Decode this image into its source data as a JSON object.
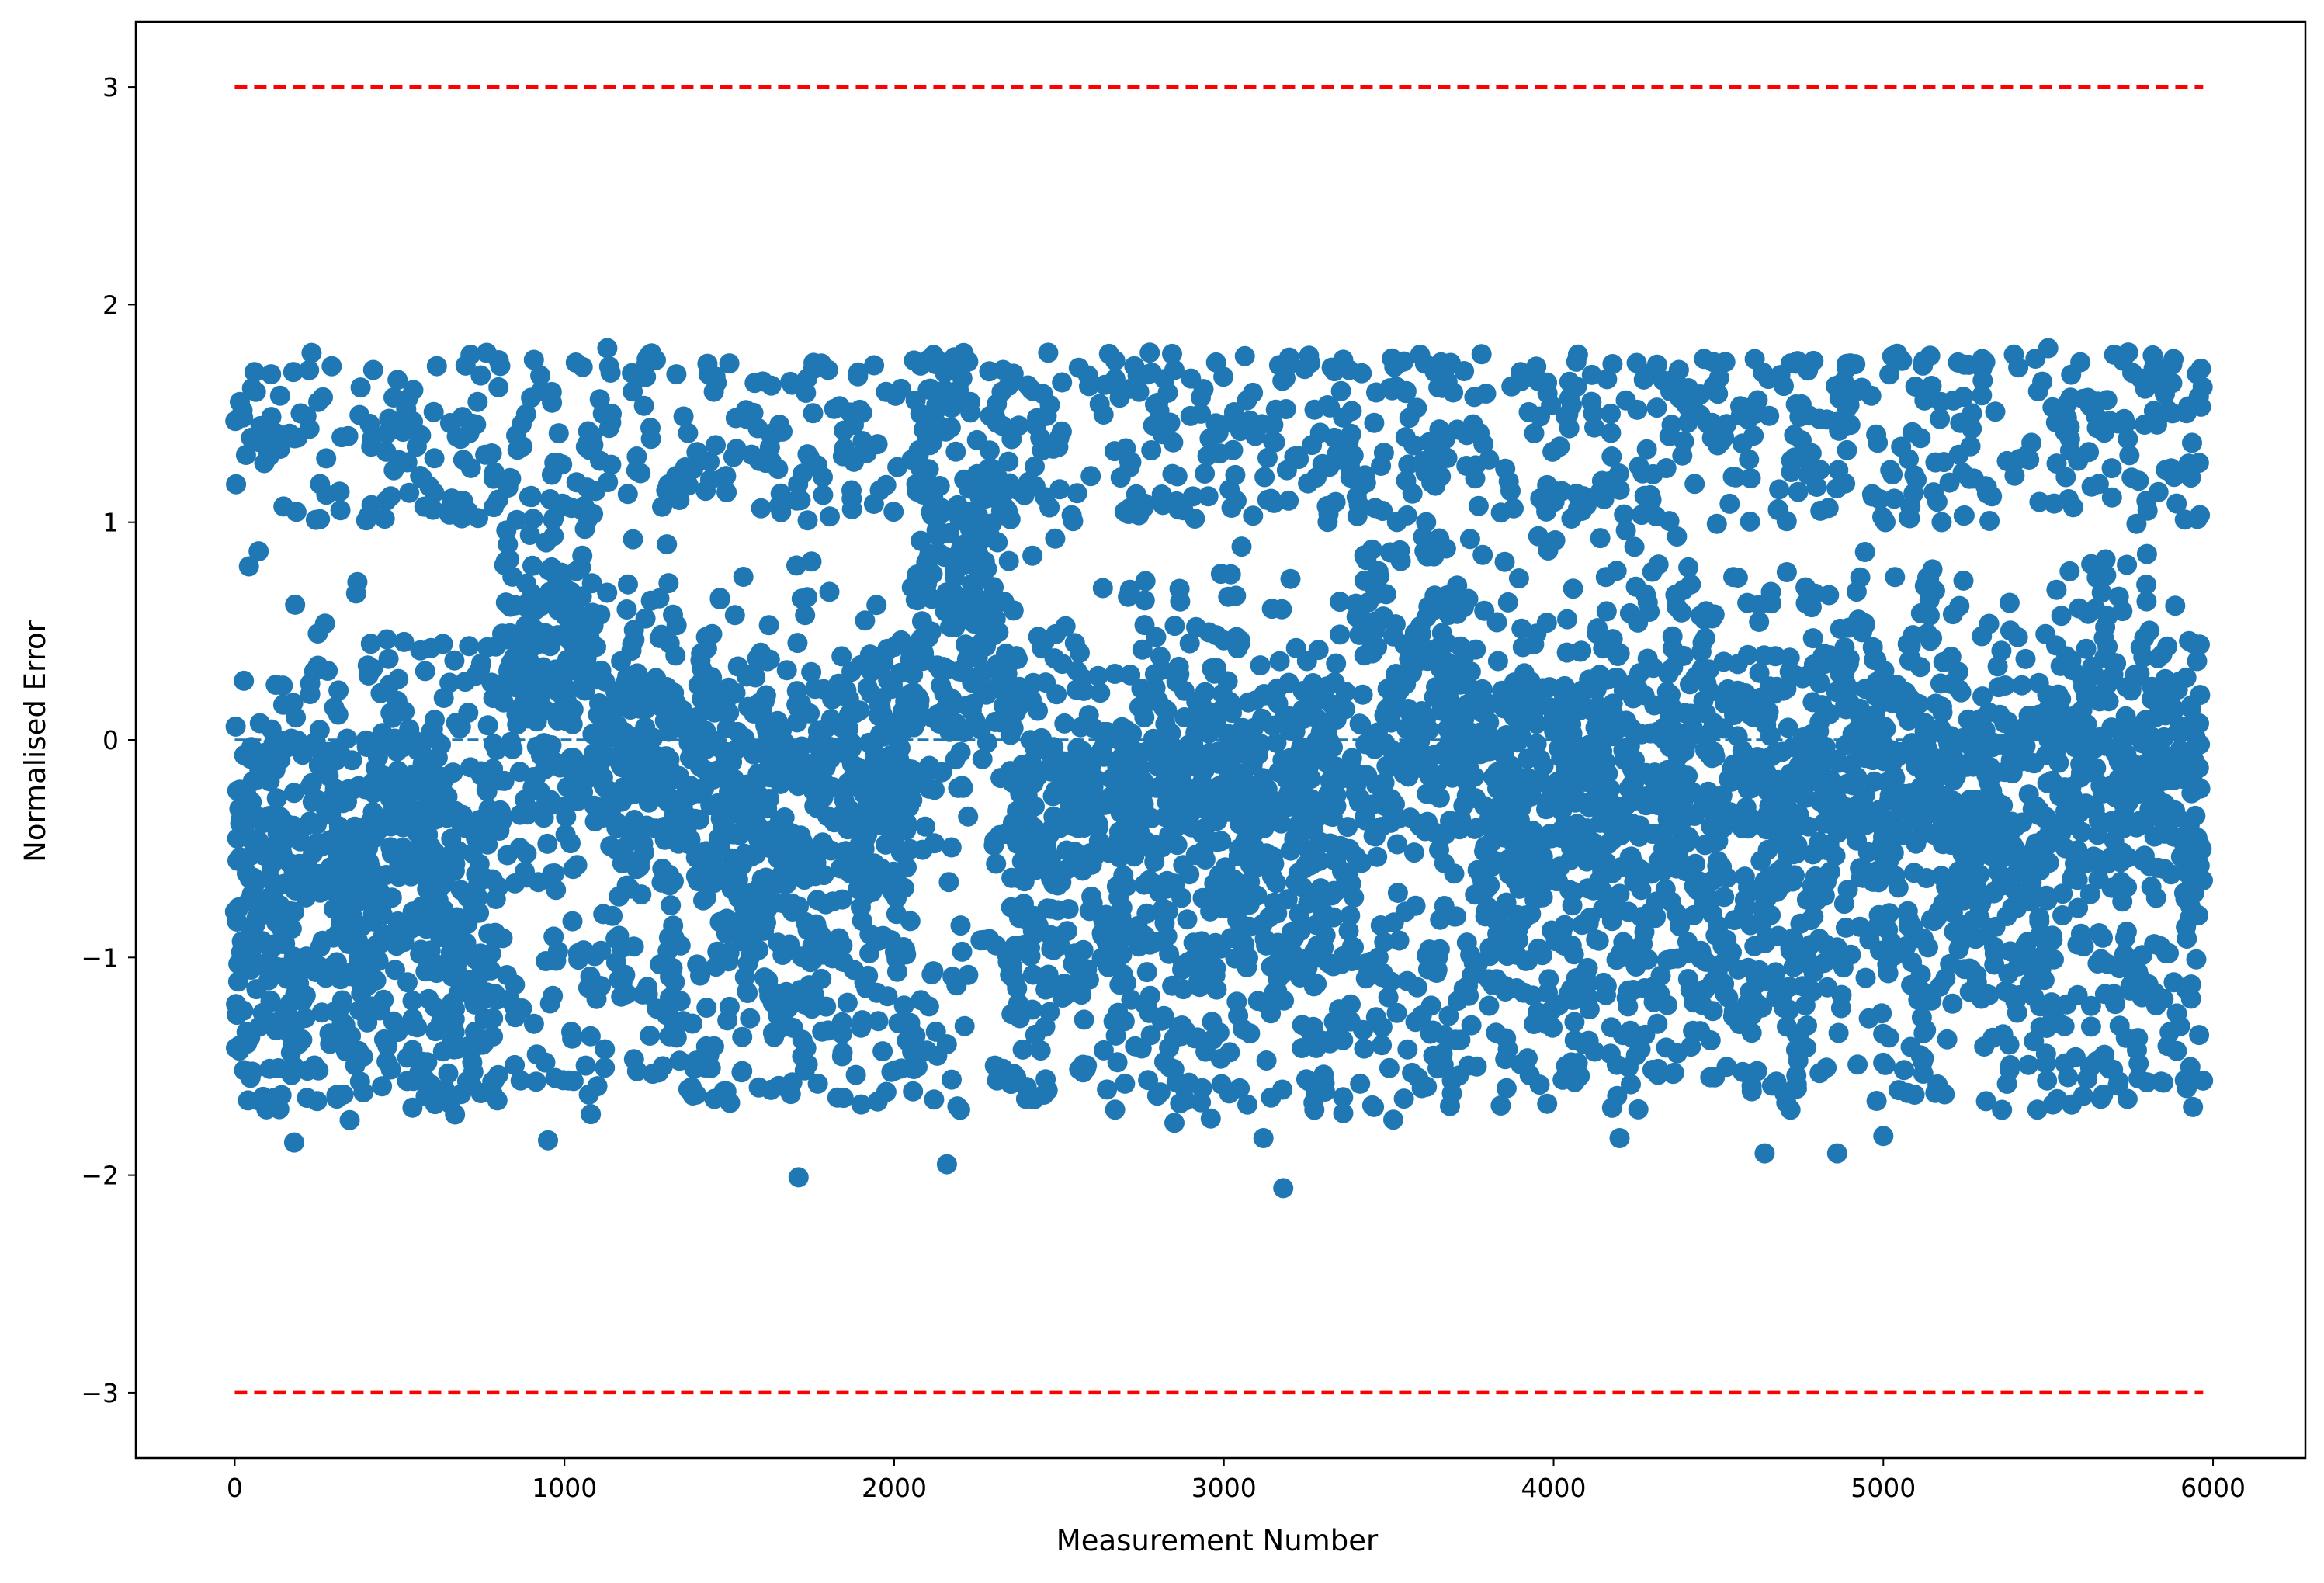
{
  "chart_data": {
    "type": "scatter",
    "title": "",
    "xlabel": "Measurement Number",
    "ylabel": "Normalised Error",
    "xlim": [
      -300,
      6280
    ],
    "ylim": [
      -3.3,
      3.3
    ],
    "grid": false,
    "x_ticks": [
      0,
      1000,
      2000,
      3000,
      4000,
      5000,
      6000
    ],
    "y_ticks": [
      -3,
      -2,
      -1,
      0,
      1,
      2,
      3
    ],
    "x_tick_labels": [
      "0",
      "1000",
      "2000",
      "3000",
      "4000",
      "5000",
      "6000"
    ],
    "y_tick_labels": [
      "−3",
      "−2",
      "−1",
      "0",
      "1",
      "2",
      "3"
    ],
    "point_count": 5970,
    "point_color": "#1f77b4",
    "threshold_color": "#ff0000",
    "thresholds": [
      {
        "y": 3,
        "x_start": 0,
        "x_end": 5970,
        "style": "dashed"
      },
      {
        "y": -3,
        "x_start": 0,
        "x_end": 5970,
        "style": "dashed"
      }
    ],
    "zero_line": {
      "y": 0,
      "x_start": 0,
      "x_end": 5970,
      "style": "dashed",
      "color": "#1f77b4"
    },
    "series": [
      {
        "kind": "points",
        "x": [
          180,
          1710,
          2160,
          3180,
          4200,
          4640,
          4860,
          5000,
          950,
          3120,
          5360,
          2850,
          2960,
          100,
          250,
          330,
          380,
          1080,
          1400,
          1650,
          2200,
          2400,
          2700,
          3250,
          3450,
          3600,
          4250,
          4700,
          5560,
          5920,
          60,
          110,
          200,
          420,
          520,
          700,
          800,
          870,
          1130,
          1500,
          1800,
          2080,
          2330,
          2560,
          2850,
          3070,
          3380,
          3640,
          3900,
          4120,
          4380,
          4610,
          4900,
          5120,
          5300,
          5500,
          5700,
          5880
        ],
        "y": [
          -1.85,
          -2.01,
          -1.95,
          -2.06,
          -1.83,
          -1.9,
          -1.9,
          -1.82,
          -1.84,
          -1.83,
          -1.7,
          -1.76,
          -1.74,
          -1.69,
          -1.66,
          -1.63,
          -1.57,
          -1.72,
          -1.63,
          -1.59,
          -1.7,
          -1.65,
          -1.58,
          -1.56,
          -1.68,
          -1.6,
          -1.45,
          -1.62,
          -1.55,
          -1.6,
          1.69,
          1.68,
          1.5,
          1.7,
          1.52,
          1.72,
          1.62,
          1.45,
          1.8,
          1.73,
          1.7,
          1.72,
          1.7,
          1.71,
          1.7,
          1.56,
          1.7,
          1.69,
          1.69,
          1.5,
          1.7,
          1.75,
          1.73,
          1.72,
          1.75,
          1.8,
          1.77,
          1.75
        ]
      }
    ],
    "segments": [
      {
        "x_start": 0,
        "x_end": 250,
        "center": -0.6,
        "spread": 0.9
      },
      {
        "x_start": 250,
        "x_end": 500,
        "center": -0.5,
        "spread": 0.8
      },
      {
        "x_start": 500,
        "x_end": 800,
        "center": -0.55,
        "spread": 0.85
      },
      {
        "x_start": 800,
        "x_end": 1100,
        "center": 0.2,
        "spread": 0.8
      },
      {
        "x_start": 1100,
        "x_end": 1450,
        "center": -0.1,
        "spread": 0.7
      },
      {
        "x_start": 1450,
        "x_end": 1750,
        "center": -0.3,
        "spread": 0.9
      },
      {
        "x_start": 1750,
        "x_end": 2050,
        "center": -0.25,
        "spread": 0.75
      },
      {
        "x_start": 2050,
        "x_end": 2350,
        "center": 0.5,
        "spread": 1.0
      },
      {
        "x_start": 2350,
        "x_end": 2700,
        "center": -0.35,
        "spread": 0.85
      },
      {
        "x_start": 2700,
        "x_end": 3050,
        "center": -0.3,
        "spread": 0.9
      },
      {
        "x_start": 3050,
        "x_end": 3400,
        "center": -0.4,
        "spread": 0.8
      },
      {
        "x_start": 3400,
        "x_end": 3750,
        "center": 0.1,
        "spread": 0.9
      },
      {
        "x_start": 3750,
        "x_end": 4100,
        "center": -0.3,
        "spread": 0.85
      },
      {
        "x_start": 4100,
        "x_end": 4450,
        "center": -0.2,
        "spread": 0.9
      },
      {
        "x_start": 4450,
        "x_end": 4800,
        "center": -0.3,
        "spread": 0.85
      },
      {
        "x_start": 4800,
        "x_end": 5150,
        "center": -0.1,
        "spread": 0.8
      },
      {
        "x_start": 5150,
        "x_end": 5500,
        "center": -0.35,
        "spread": 0.8
      },
      {
        "x_start": 5500,
        "x_end": 5970,
        "center": -0.15,
        "spread": 0.8
      }
    ]
  }
}
